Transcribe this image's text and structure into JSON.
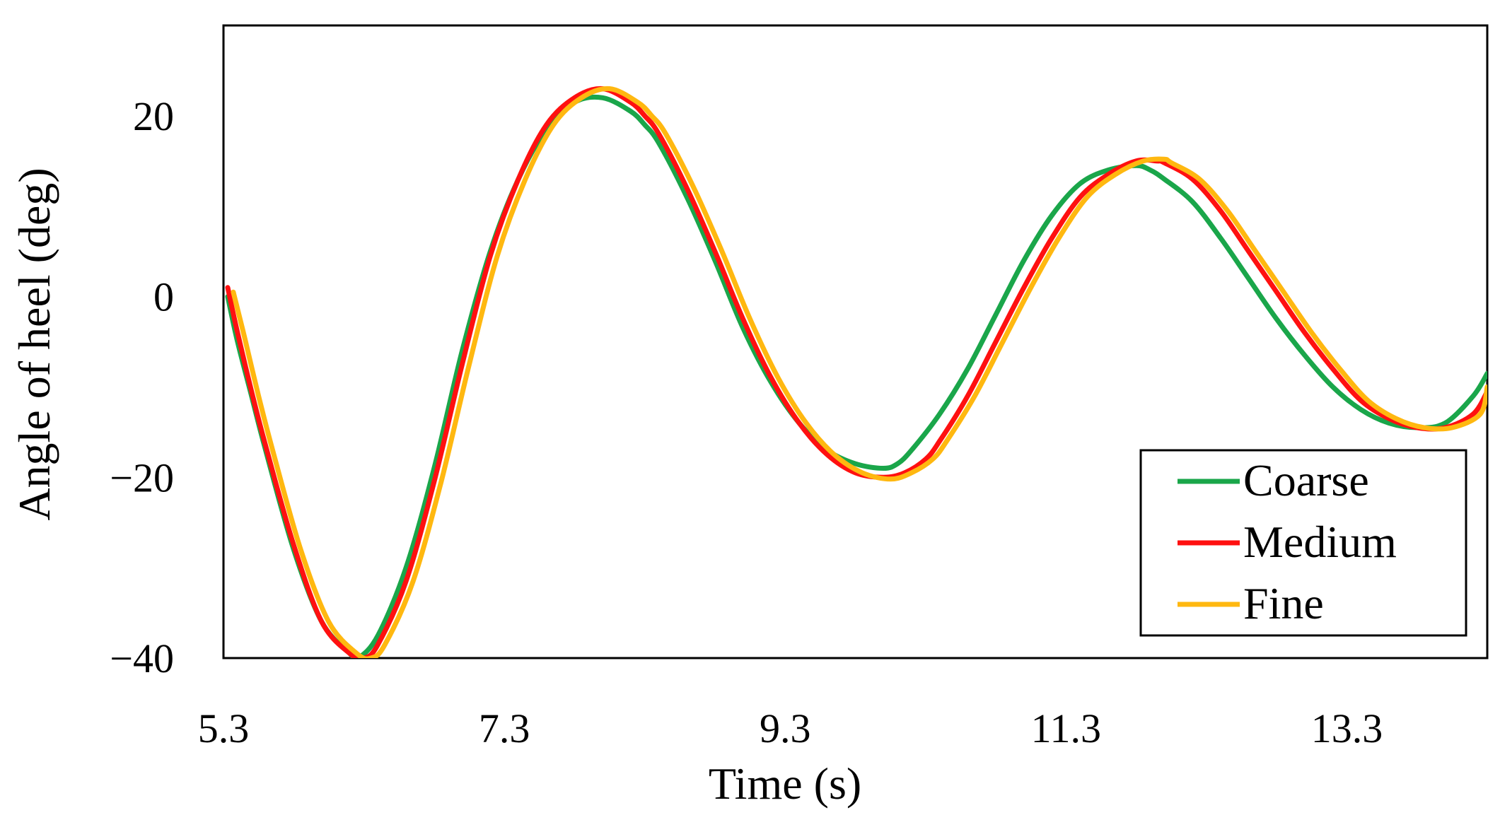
{
  "chart_data": {
    "type": "line",
    "title": "",
    "xlabel": "Time (s)",
    "ylabel": "Angle of heel (deg)",
    "xlim": [
      5.3,
      14.3
    ],
    "ylim": [
      -40,
      30
    ],
    "xticks": [
      5.3,
      7.3,
      9.3,
      11.3,
      13.3
    ],
    "xtick_labels": [
      "5.3",
      "7.3",
      "9.3",
      "11.3",
      "13.3"
    ],
    "yticks": [
      -40,
      -20,
      0,
      20
    ],
    "ytick_labels": [
      "−40",
      "−20",
      "0",
      "20"
    ],
    "grid": false,
    "legend_position": "bottom-right",
    "series": [
      {
        "name": "Coarse",
        "color": "#1aa64a",
        "x": [
          5.33,
          5.4,
          5.5,
          5.6,
          5.8,
          6.0,
          6.2,
          6.26,
          6.4,
          6.6,
          6.8,
          7.0,
          7.2,
          7.4,
          7.6,
          7.8,
          8.0,
          8.2,
          8.3,
          8.4,
          8.6,
          8.8,
          9.0,
          9.2,
          9.4,
          9.6,
          9.8,
          10.0,
          10.1,
          10.2,
          10.4,
          10.6,
          10.8,
          11.0,
          11.2,
          11.4,
          11.6,
          11.8,
          11.9,
          12.0,
          12.2,
          12.4,
          12.6,
          12.8,
          13.0,
          13.2,
          13.4,
          13.6,
          13.8,
          14.0,
          14.2,
          14.3
        ],
        "y": [
          0,
          -5,
          -11,
          -17,
          -28,
          -36,
          -39.5,
          -40,
          -37.5,
          -30,
          -19,
          -6,
          5,
          13,
          18.5,
          21.5,
          22,
          20.5,
          19,
          17,
          11,
          4,
          -3.5,
          -9.5,
          -14,
          -17,
          -18.5,
          -19,
          -18.5,
          -17,
          -13,
          -8,
          -2,
          4,
          9,
          12.5,
          14,
          14.5,
          14,
          13,
          10.5,
          6.5,
          2,
          -2.5,
          -6.5,
          -10,
          -12.5,
          -14,
          -14.5,
          -14,
          -11,
          -8.5
        ]
      },
      {
        "name": "Medium",
        "color": "#ff1010",
        "x": [
          5.33,
          5.4,
          5.5,
          5.6,
          5.8,
          6.0,
          6.2,
          6.3,
          6.4,
          6.6,
          6.8,
          7.0,
          7.2,
          7.4,
          7.6,
          7.8,
          8.0,
          8.2,
          8.3,
          8.4,
          8.6,
          8.8,
          9.0,
          9.2,
          9.4,
          9.6,
          9.8,
          10.0,
          10.15,
          10.3,
          10.4,
          10.6,
          10.8,
          11.0,
          11.2,
          11.4,
          11.6,
          11.8,
          11.95,
          12.0,
          12.2,
          12.4,
          12.6,
          12.8,
          13.0,
          13.2,
          13.4,
          13.6,
          13.8,
          14.0,
          14.2,
          14.3
        ],
        "y": [
          1,
          -4,
          -10.5,
          -16.5,
          -27.5,
          -36,
          -39.5,
          -40,
          -38.5,
          -31.5,
          -20.5,
          -7.5,
          4.5,
          13,
          19,
          22,
          23,
          21.5,
          20,
          18,
          12,
          5,
          -2.5,
          -9,
          -14,
          -17.5,
          -19.5,
          -20,
          -19.5,
          -18,
          -16,
          -11,
          -5,
          1,
          6.5,
          11,
          13.5,
          15,
          15,
          14.8,
          13,
          9.5,
          5,
          0.5,
          -4,
          -8,
          -11.5,
          -13.5,
          -14.5,
          -14.5,
          -13,
          -10.5
        ]
      },
      {
        "name": "Fine",
        "color": "#ffb810",
        "x": [
          5.37,
          5.45,
          5.55,
          5.65,
          5.85,
          6.05,
          6.25,
          6.35,
          6.45,
          6.65,
          6.85,
          7.05,
          7.25,
          7.45,
          7.65,
          7.85,
          8.05,
          8.25,
          8.35,
          8.45,
          8.65,
          8.85,
          9.05,
          9.25,
          9.45,
          9.65,
          9.85,
          10.05,
          10.2,
          10.35,
          10.45,
          10.65,
          10.85,
          11.05,
          11.25,
          11.45,
          11.65,
          11.85,
          12.0,
          12.05,
          12.25,
          12.45,
          12.65,
          12.85,
          13.05,
          13.25,
          13.45,
          13.65,
          13.85,
          14.05,
          14.25,
          14.3
        ],
        "y": [
          0.5,
          -4.5,
          -11,
          -17,
          -28,
          -36,
          -39.5,
          -40,
          -38.5,
          -31.5,
          -20.5,
          -7.5,
          4.5,
          13,
          19,
          22,
          23,
          21.5,
          20,
          18,
          12,
          5,
          -2.5,
          -9,
          -14,
          -17.5,
          -19.5,
          -20.2,
          -19.5,
          -18,
          -16,
          -11,
          -5,
          1,
          6.5,
          11,
          13.5,
          15,
          15.2,
          14.8,
          13,
          9.5,
          5,
          0.5,
          -4,
          -8,
          -11.5,
          -13.5,
          -14.5,
          -14.5,
          -13,
          -10
        ]
      }
    ]
  }
}
